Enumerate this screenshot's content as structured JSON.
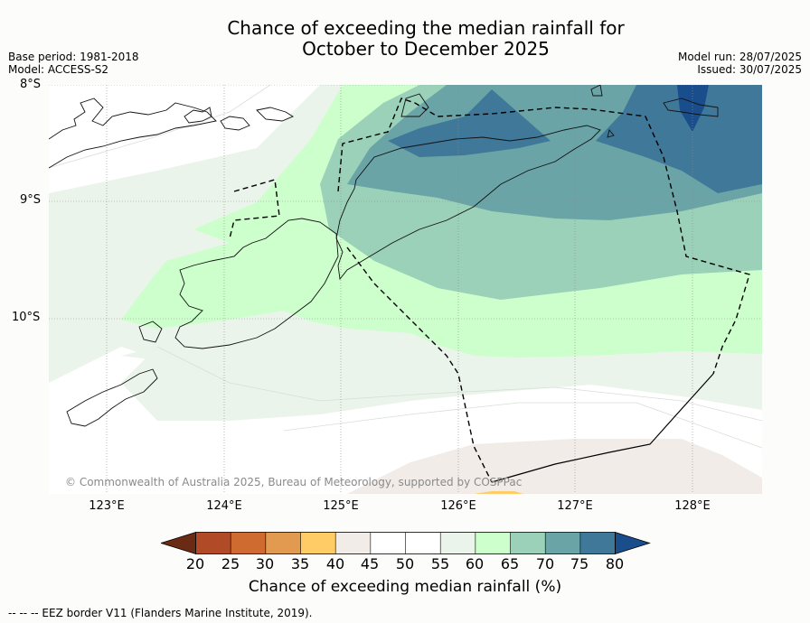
{
  "title": {
    "line1": "Chance of exceeding the median rainfall for",
    "line2": "October to December 2025"
  },
  "meta": {
    "base_period": "Base period: 1981-2018",
    "model": "Model: ACCESS-S2",
    "model_run": "Model run: 28/07/2025",
    "issued": "Issued: 30/07/2025"
  },
  "axes": {
    "lat_labels": [
      "8°S",
      "9°S",
      "10°S"
    ],
    "lon_labels": [
      "123°E",
      "124°E",
      "125°E",
      "126°E",
      "127°E",
      "128°E"
    ]
  },
  "copyright": "© Commonwealth of Australia 2025, Bureau of Meteorology, supported by COSPPac",
  "colorbar": {
    "label": "Chance of exceeding median rainfall (%)",
    "ticks": [
      "20",
      "25",
      "30",
      "35",
      "40",
      "45",
      "50",
      "55",
      "60",
      "65",
      "70",
      "75",
      "80"
    ],
    "colors": [
      "#6b2a14",
      "#b14a27",
      "#cf6a30",
      "#e29a50",
      "#ffcc66",
      "#f1ece7",
      "#ffffff",
      "#ffffff",
      "#ebf4ea",
      "#ccffcc",
      "#9bd1b8",
      "#6aa4a6",
      "#3f7898",
      "#1a4d8c"
    ]
  },
  "legend_note": "--  --  -- EEZ border V11 (Flanders Marine Institute, 2019)."
}
